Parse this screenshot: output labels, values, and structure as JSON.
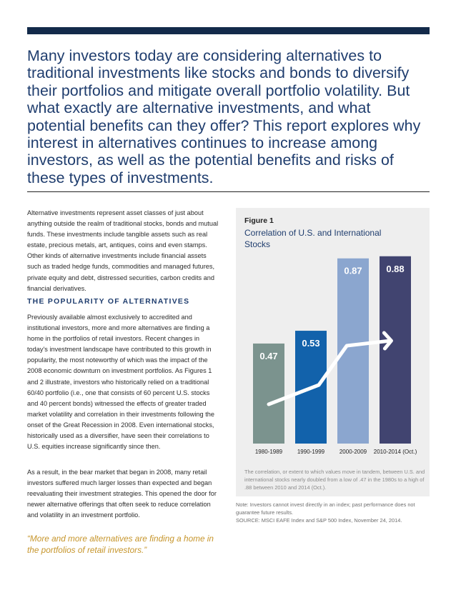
{
  "headline": "Many investors today are considering alternatives to traditional investments like stocks and bonds to diversify their portfolios and mitigate overall portfolio volatility. But what exactly are alternative investments, and what potential benefits can they offer? This report explores why interest in alternatives continues to increase among investors, as well as the potential benefits and risks of these types of investments.",
  "intro_paragraph": "Alternative investments represent asset classes of just about anything outside the realm of traditional stocks, bonds and mutual funds. These investments include tangible assets such as real estate, precious metals, art, antiques, coins and even stamps. Other kinds of alternative investments include financial assets such as traded hedge funds, commodities and managed futures, private equity and debt, distressed securities, carbon credits and financial derivatives.",
  "section_heading": "THE POPULARITY OF ALTERNATIVES",
  "paragraph_2": "Previously available almost exclusively to accredited and institutional investors, more and more alternatives are finding a home in the portfolios of retail investors. Recent changes in today's investment landscape have contributed to this growth in popularity, the most noteworthy of which was the impact of the 2008 economic downturn on investment portfolios. As Figures 1 and 2 illustrate, investors who historically relied on a traditional 60/40 portfolio (i.e., one that consists of 60 percent U.S. stocks and 40 percent bonds) witnessed the effects of greater traded market volatility and correlation in their investments following the onset of the Great Recession in 2008. Even international stocks, historically used as a diversifier, have seen their correlations to U.S. equities increase significantly since then.",
  "paragraph_3": "As a result, in the bear market that began in 2008, many retail investors suffered much larger losses than expected and began reevaluating their investment strategies. This opened the door for newer alternative offerings that often seek to reduce correlation and volatility in an investment portfolio.",
  "pull_quote": "“More and more alternatives are finding a home in the portfolios of retail investors.”",
  "figure": {
    "label": "Figure 1",
    "title": "Correlation of U.S. and International Stocks",
    "caption": "The correlation, or extent to which values move in tandem, between U.S. and international stocks nearly doubled from a low of .47 in the 1980s to a high of .88 between 2010 and 2014 (Oct.).",
    "note": "Note: Investors cannot invest directly in an index; past performance does not guarantee future results.",
    "source": "SOURCE: MSCI EAFE Index and S&P 500 Index, November 24, 2014."
  },
  "chart_data": {
    "type": "bar",
    "categories": [
      "1980-1989",
      "1990-1999",
      "2000-2009",
      "2010-2014 (Oct.)"
    ],
    "values": [
      0.47,
      0.53,
      0.87,
      0.88
    ],
    "value_labels": [
      "0.47",
      "0.53",
      "0.87",
      "0.88"
    ],
    "ylim": [
      0,
      1
    ],
    "grid": false,
    "legend": "none",
    "colors": [
      "#7b938e",
      "#1262ab",
      "#8ba6cf",
      "#414470"
    ],
    "trend_arrow_color": "#ffffff"
  },
  "colors": {
    "brand_navy": "#132a4a",
    "headline_blue": "#1f3d6e",
    "quote_gold": "#c6952b",
    "panel_gray": "#eeeeee"
  }
}
